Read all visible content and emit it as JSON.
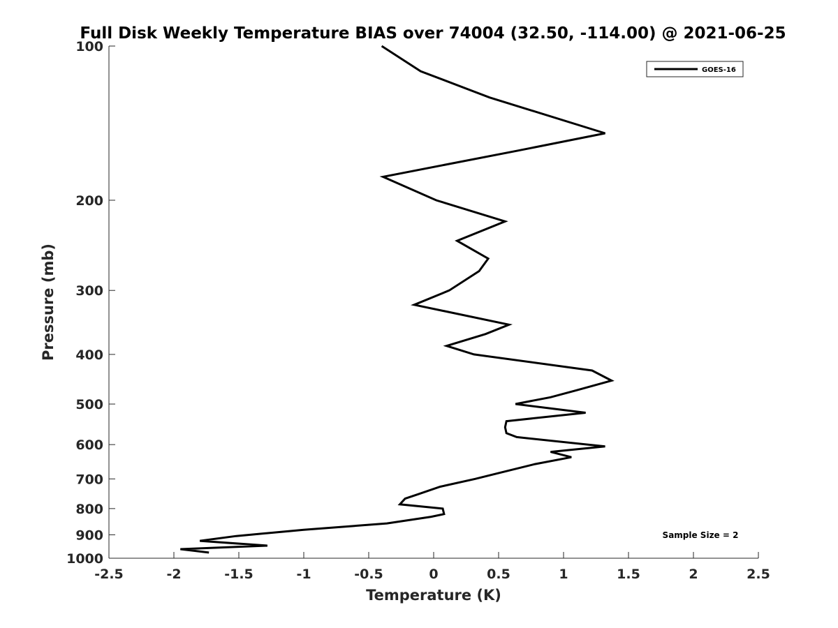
{
  "chart_data": {
    "type": "line",
    "title": "Full Disk Weekly Temperature BIAS over 74004 (32.50, -114.00) @ 2021-06-25",
    "xlabel": "Temperature (K)",
    "ylabel": "Pressure (mb)",
    "xlim": [
      -2.5,
      2.5
    ],
    "ylim": [
      100,
      1000
    ],
    "y_scale": "log",
    "y_reversed": true,
    "x_ticks": [
      -2.5,
      -2,
      -1.5,
      -1,
      -0.5,
      0,
      0.5,
      1,
      1.5,
      2,
      2.5
    ],
    "x_tick_labels": [
      "-2.5",
      "-2",
      "-1.5",
      "-1",
      "-0.5",
      "0",
      "0.5",
      "1",
      "1.5",
      "2",
      "2.5"
    ],
    "y_ticks": [
      100,
      200,
      300,
      400,
      500,
      600,
      700,
      800,
      900,
      1000
    ],
    "y_tick_labels": [
      "100",
      "200",
      "300",
      "400",
      "500",
      "600",
      "700",
      "800",
      "900",
      "1000"
    ],
    "grid": false,
    "legend_position": "top-right",
    "series": [
      {
        "name": "GOES-16",
        "color": "#000000",
        "x": [
          -0.4,
          -0.1,
          0.43,
          1.32,
          0.65,
          -0.39,
          0.02,
          0.55,
          0.18,
          0.42,
          0.35,
          0.12,
          -0.15,
          0.58,
          0.4,
          0.1,
          0.31,
          1.22,
          1.37,
          1.1,
          0.9,
          0.63,
          1.17,
          0.56,
          0.55,
          0.56,
          0.64,
          1.32,
          0.9,
          1.06,
          0.78,
          0.52,
          0.32,
          0.05,
          -0.12,
          -0.22,
          -0.26,
          0.07,
          0.08,
          -0.02,
          -0.36,
          -1.0,
          -1.52,
          -1.8,
          -1.28,
          -1.95,
          -1.73
        ],
        "y": [
          100,
          112,
          126,
          148,
          160,
          180,
          200,
          220,
          240,
          260,
          275,
          300,
          320,
          350,
          365,
          385,
          400,
          430,
          450,
          470,
          485,
          500,
          520,
          540,
          555,
          570,
          580,
          605,
          620,
          635,
          655,
          680,
          700,
          725,
          750,
          765,
          785,
          800,
          820,
          830,
          855,
          880,
          905,
          925,
          945,
          960,
          975
        ]
      }
    ],
    "annotation": "Sample Size = 2"
  }
}
